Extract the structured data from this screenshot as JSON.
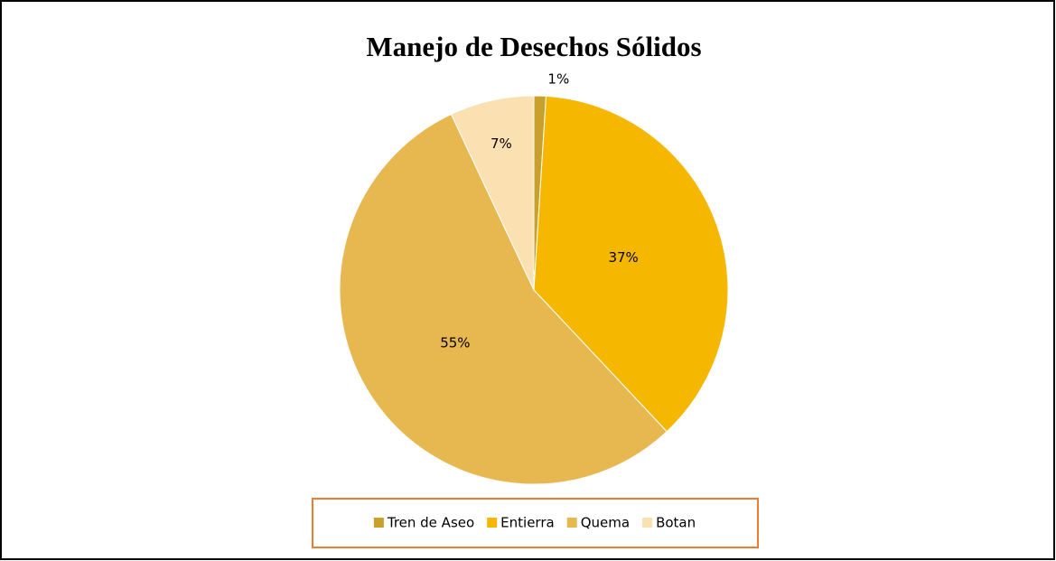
{
  "chart_data": {
    "type": "pie",
    "title": "Manejo de Desechos Sólidos",
    "categories": [
      "Tren de Aseo",
      "Entierra",
      "Quema",
      "Botan"
    ],
    "values": [
      1,
      37,
      55,
      7
    ],
    "value_labels": [
      "1%",
      "37%",
      "55%",
      "7%"
    ],
    "colors": [
      "#c9a02c",
      "#f5b700",
      "#e8b850",
      "#fbe0b2"
    ],
    "legend": "bottom"
  }
}
